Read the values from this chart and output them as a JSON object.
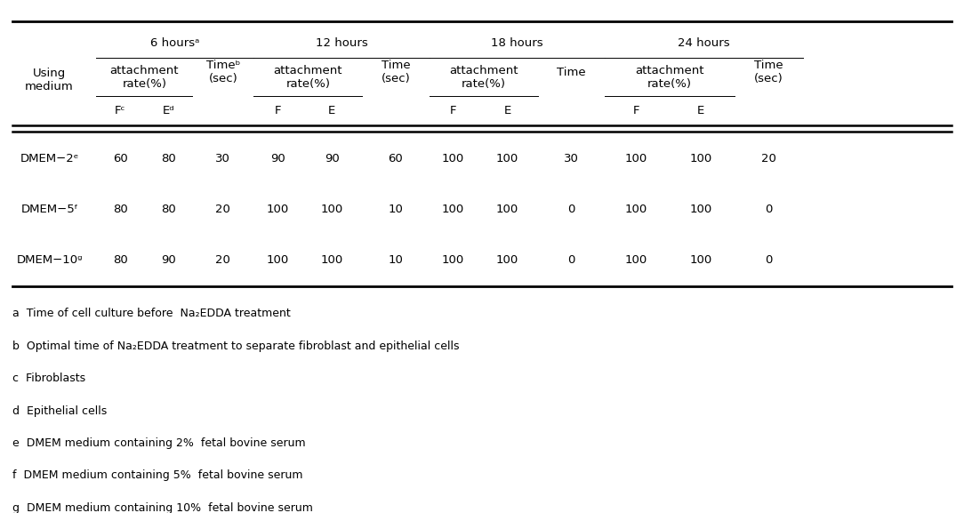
{
  "bg_color": "#ffffff",
  "text_color": "#000000",
  "font_size": 9.5,
  "footnote_font_size": 9.0,
  "hours_groups": [
    "6 hoursᵃ",
    "12 hours",
    "18 hours",
    "24 hours"
  ],
  "col_header_att": "attachment\nrate(%)",
  "rows": [
    [
      "DMEM−2ᵉ",
      "60",
      "80",
      "30",
      "90",
      "90",
      "60",
      "100",
      "100",
      "30",
      "100",
      "100",
      "20"
    ],
    [
      "DMEM−5ᶠ",
      "80",
      "80",
      "20",
      "100",
      "100",
      "10",
      "100",
      "100",
      "0",
      "100",
      "100",
      "0"
    ],
    [
      "DMEM−10ᵍ",
      "80",
      "90",
      "20",
      "100",
      "100",
      "10",
      "100",
      "100",
      "0",
      "100",
      "100",
      "0"
    ]
  ],
  "footnotes": [
    "a  Time of cell culture before  Na₂EDDA treatment",
    "b  Optimal time of Na₂EDDA treatment to separate fibroblast and epithelial cells",
    "c  Fibroblasts",
    "d  Epithelial cells",
    "e  DMEM medium containing 2%  fetal bovine serum",
    "f  DMEM medium containing 5%  fetal bovine serum",
    "g  DMEM medium containing 10%  fetal bovine serum"
  ]
}
